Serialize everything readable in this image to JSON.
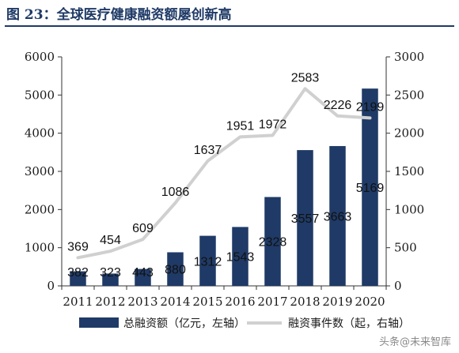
{
  "figure_title": "图 23：全球医疗健康融资额屡创新高",
  "watermark": "头条@未来智库",
  "colors": {
    "bar": "#1f3a66",
    "line": "#d0d0d0",
    "title": "#1f3a66",
    "text": "#1a1a1a"
  },
  "chart_data": {
    "type": "bar",
    "categories": [
      "2011",
      "2012",
      "2013",
      "2014",
      "2015",
      "2016",
      "2017",
      "2018",
      "2019",
      "2020"
    ],
    "series": [
      {
        "name": "总融资额（亿元，左轴）",
        "type": "bar",
        "axis": "left",
        "values": [
          382,
          323,
          443,
          880,
          1312,
          1543,
          2328,
          3557,
          3663,
          5169
        ]
      },
      {
        "name": "融资事件数（起，右轴）",
        "type": "line",
        "axis": "right",
        "values": [
          369,
          454,
          609,
          1086,
          1637,
          1951,
          1972,
          2583,
          2226,
          2199
        ]
      }
    ],
    "y_left": {
      "min": 0,
      "max": 6000,
      "ticks": [
        0,
        1000,
        2000,
        3000,
        4000,
        5000,
        6000
      ]
    },
    "y_right": {
      "min": 0,
      "max": 3000,
      "ticks": [
        0,
        500,
        1000,
        1500,
        2000,
        2500,
        3000
      ]
    },
    "legend_position": "bottom",
    "grid": false
  }
}
